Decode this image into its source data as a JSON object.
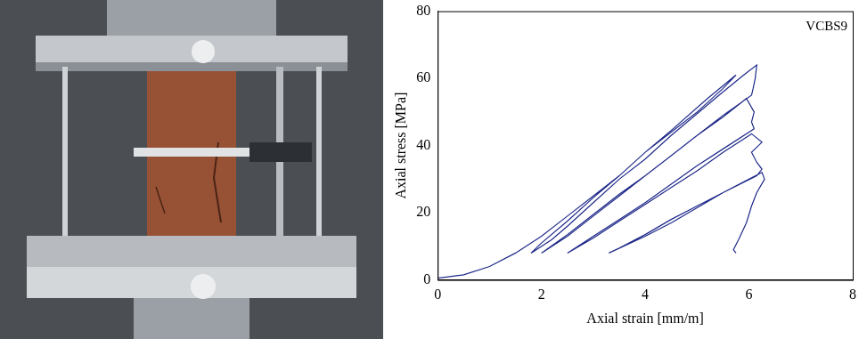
{
  "chart_data": {
    "type": "line",
    "annotation": "VCBS9",
    "x_label": "Axial strain [mm/m]",
    "y_label": "Axial stress [MPa]",
    "x": [
      0,
      0.5,
      1,
      1.5,
      2,
      2.5,
      3,
      3.5,
      4,
      4.5,
      5,
      5.5,
      5.75,
      5.2,
      4.5,
      4,
      3.5,
      3,
      2.5,
      2,
      1.8,
      2.2,
      2.5,
      3,
      3.5,
      4,
      4.5,
      5,
      5.5,
      5.9,
      6.15,
      6.12,
      6.08,
      6.05,
      5.5,
      5,
      4.5,
      4,
      3.5,
      3,
      2.5,
      2.0,
      2.5,
      3,
      3.5,
      4,
      4.5,
      5,
      5.5,
      5.95,
      6.1,
      6.05,
      6.1,
      5.5,
      5,
      4.5,
      4,
      3.5,
      3,
      2.5,
      3,
      3.5,
      4,
      4.5,
      5,
      5.5,
      6.05,
      6.25,
      6.05,
      6.15,
      6.25,
      6.15,
      5.5,
      5,
      4.5,
      4,
      3.5,
      3.3,
      4,
      4.5,
      5,
      5.5,
      6.0,
      6.25,
      6.3,
      6.15,
      6.05,
      5.95,
      5.8,
      5.7,
      5.75
    ],
    "values": [
      0.5,
      1.5,
      4,
      8,
      13,
      19,
      25,
      31,
      38,
      44,
      50,
      57,
      61,
      54,
      44.5,
      38,
      31,
      24.5,
      17.5,
      11,
      8,
      12,
      16,
      23,
      30,
      36,
      43,
      49.5,
      56,
      61,
      64,
      60,
      57,
      55,
      49,
      43,
      37,
      31,
      25.5,
      19.5,
      13.5,
      8,
      13,
      19,
      25,
      31,
      37,
      43,
      48.5,
      54,
      50,
      47,
      45,
      39,
      34,
      28.5,
      23,
      18,
      13,
      8,
      12.5,
      17.5,
      22.5,
      27.5,
      32.5,
      38,
      43.5,
      41,
      38,
      35,
      33,
      31,
      26,
      22,
      18,
      13.5,
      9.5,
      8,
      13,
      17,
      21.5,
      26,
      30,
      32,
      30,
      26,
      22,
      17,
      12,
      9,
      8
    ],
    "color": "#1f2a8a",
    "xlim": [
      0,
      8
    ],
    "xticks": [
      0,
      2,
      4,
      6,
      8
    ],
    "ylim": [
      0,
      80
    ],
    "yticks": [
      0,
      20,
      40,
      60,
      80
    ],
    "grid": false
  }
}
